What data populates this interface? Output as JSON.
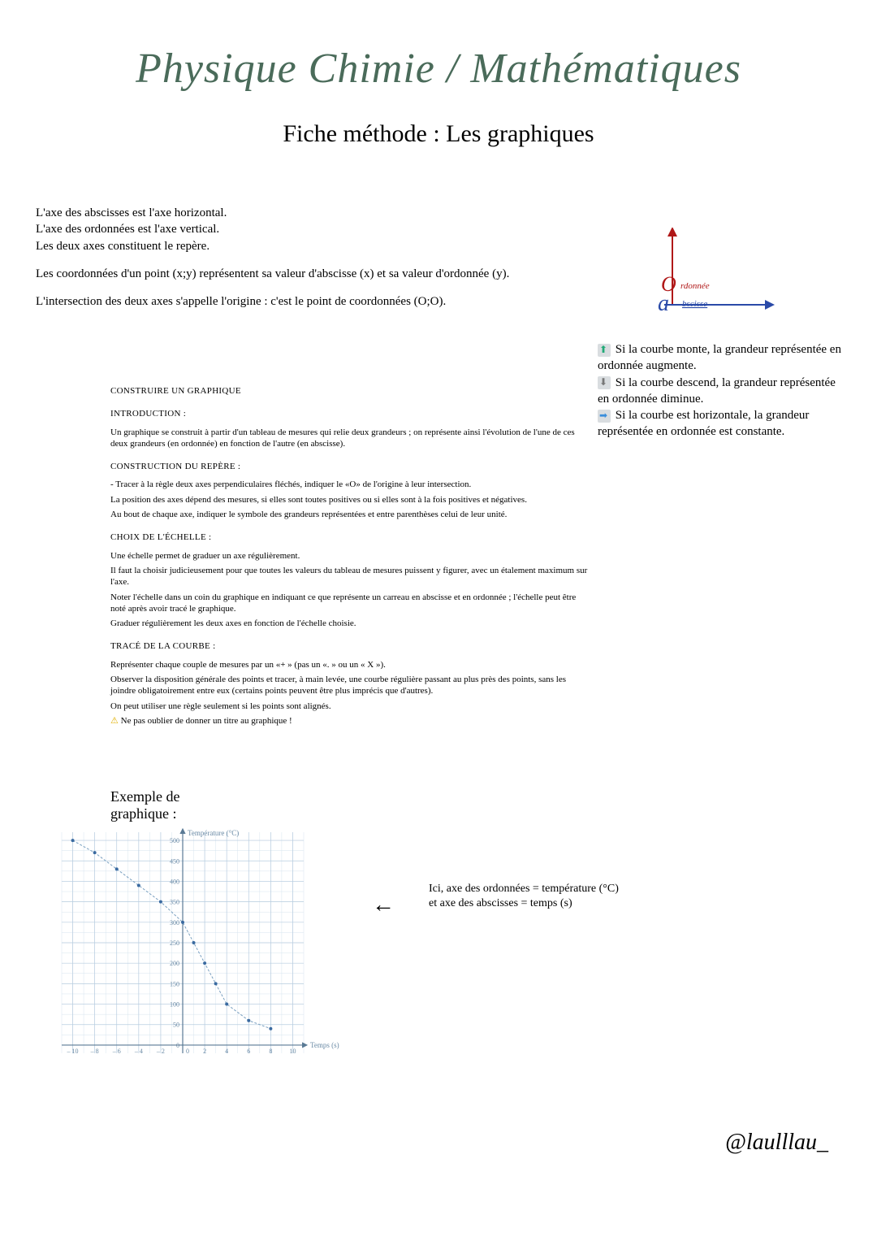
{
  "header": {
    "title_script": "Physique Chimie / Mathématiques",
    "title_script_color": "#4a6b5a",
    "subtitle": "Fiche méthode : Les graphiques"
  },
  "intro": {
    "p1": "L'axe des abscisses est l'axe horizontal.\nL'axe des ordonnées est l'axe vertical.\nLes deux axes constituent le repère.",
    "p2": "Les coordonnées d'un point (x;y) représentent sa valeur d'abscisse (x) et sa valeur d'ordonnée (y).",
    "p3": "L'intersection des deux axes s'appelle l'origine : c'est le point de coordonnées (O;O)."
  },
  "axes_diagram": {
    "y_color": "#b01818",
    "x_color": "#2a4aa8",
    "o_color": "#b01818",
    "a_color": "#2a4aa8",
    "y_label": "rdonnée",
    "x_label": "bscisse",
    "o_letter": "O",
    "a_letter": "a"
  },
  "side_notes": {
    "n1": "Si la courbe monte, la grandeur représentée en ordonnée augmente.",
    "n2": "Si la courbe descend, la grandeur représentée en ordonnée diminue.",
    "n3": "Si la courbe est horizontale, la grandeur représentée en ordonnée est constante."
  },
  "method": {
    "h_main": "CONSTRUIRE UN GRAPHIQUE",
    "h_intro": "INTRODUCTION :",
    "intro_text": "Un graphique se construit à partir d'un tableau de mesures qui relie deux grandeurs ; on représente ainsi l'évolution de l'une de ces deux grandeurs (en ordonnée) en fonction de l'autre (en abscisse).",
    "h_repere": "CONSTRUCTION DU REPÈRE :",
    "repere_p1": "- Tracer à la règle deux axes perpendiculaires fléchés, indiquer le «O» de l'origine à leur intersection.",
    "repere_p2": "La position des axes dépend des mesures, si elles sont toutes positives ou si elles sont à la fois positives et négatives.",
    "repere_p3": "Au bout de chaque axe, indiquer le symbole des grandeurs représentées et entre parenthèses celui de leur unité.",
    "h_echelle": "CHOIX DE L'ÉCHELLE :",
    "echelle_p1": "Une échelle permet de graduer un axe régulièrement.",
    "echelle_p2": "Il faut la choisir judicieusement pour que toutes les valeurs du tableau de mesures puissent y figurer, avec un étalement maximum sur l'axe.",
    "echelle_p3": "Noter l'échelle dans un coin du graphique en indiquant ce que représente un carreau en abscisse et en ordonnée ; l'échelle peut être noté après avoir tracé le graphique.",
    "echelle_p4": "Graduer régulièrement les deux axes en fonction de l'échelle choisie.",
    "h_trace": "TRACÉ DE LA COURBE :",
    "trace_p1": "Représenter chaque couple de mesures par un «+ » (pas un «. » ou  un « X »).",
    "trace_p2": "Observer la disposition générale des points et tracer, à main levée, une courbe régulière passant au plus près des points, sans les joindre obligatoirement entre eux (certains points peuvent être plus imprécis que d'autres).",
    "trace_p3": "On peut utiliser une règle seulement si les points sont alignés.",
    "warn": "Ne pas oublier de donner un titre au graphique !"
  },
  "example": {
    "title": "Exemple de\ngraphique :",
    "annotation": "Ici, axe des ordonnées = température (°C) et axe des abscisses = temps (s)",
    "arrow": "←"
  },
  "chart": {
    "type": "scatter-line",
    "xlabel": "Temps (s)",
    "ylabel": "Température (°C)",
    "x_ticks": [
      -10,
      -8,
      -6,
      -4,
      -2,
      0,
      2,
      4,
      6,
      8,
      10
    ],
    "y_ticks": [
      0,
      50,
      100,
      150,
      200,
      250,
      300,
      350,
      400,
      450,
      500
    ],
    "xlim": [
      -11,
      11
    ],
    "ylim": [
      -20,
      520
    ],
    "data": [
      {
        "x": -10,
        "y": 500
      },
      {
        "x": -8,
        "y": 470
      },
      {
        "x": -6,
        "y": 430
      },
      {
        "x": -4,
        "y": 390
      },
      {
        "x": -2,
        "y": 350
      },
      {
        "x": 0,
        "y": 300
      },
      {
        "x": 1,
        "y": 250
      },
      {
        "x": 2,
        "y": 200
      },
      {
        "x": 3,
        "y": 150
      },
      {
        "x": 4,
        "y": 100
      },
      {
        "x": 6,
        "y": 60
      },
      {
        "x": 8,
        "y": 40
      }
    ],
    "grid_color_minor": "#d7e4ef",
    "grid_color_major": "#b8cde0",
    "axis_color": "#5a7a95",
    "point_color": "#3a6aa0",
    "line_color": "#7aa0c0",
    "label_color": "#6a8aa5",
    "tick_fontsize": 8,
    "label_fontsize": 9,
    "background": "#ffffff"
  },
  "credit": "@laulllau_"
}
